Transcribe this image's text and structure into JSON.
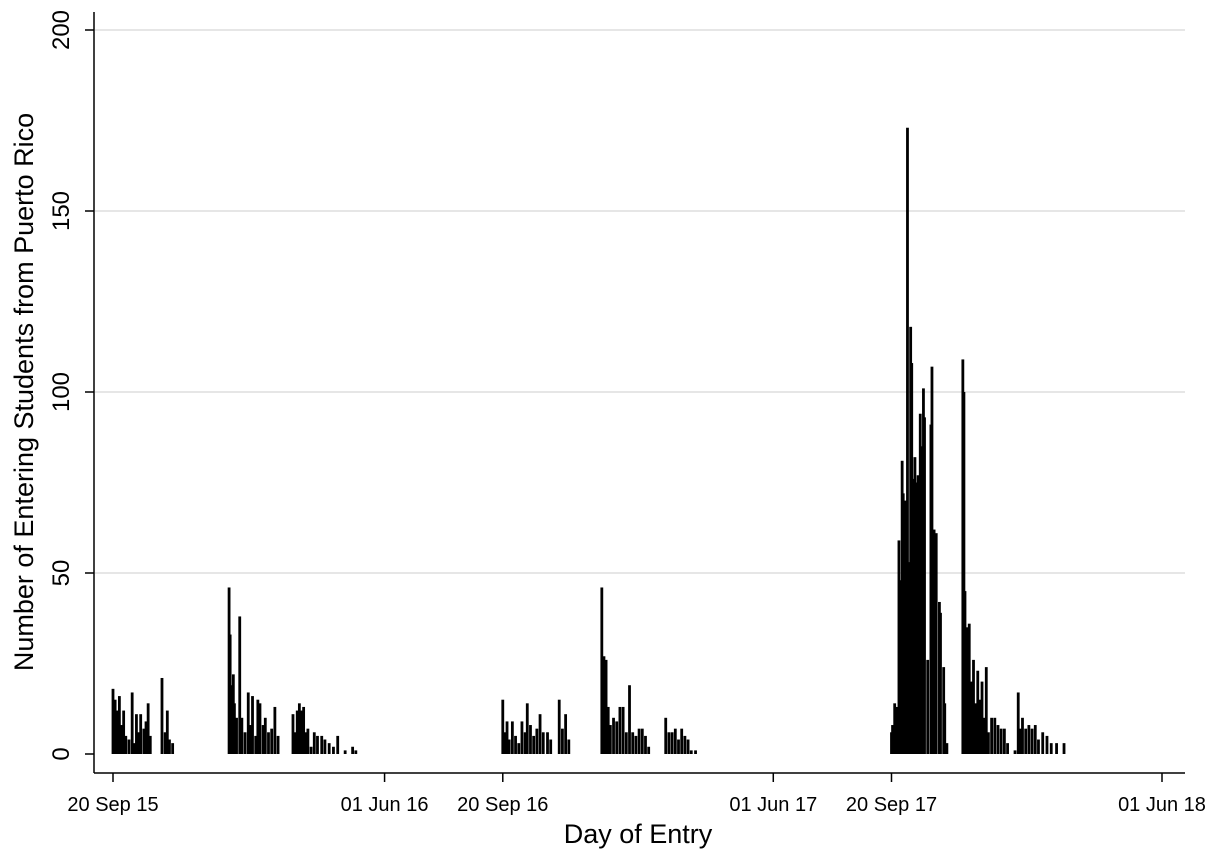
{
  "chart_data": {
    "type": "bar",
    "title": "",
    "xlabel": "Day of Entry",
    "ylabel": "Number of Entering Students from Puerto Rico",
    "ylim": [
      0,
      200
    ],
    "yticks": [
      0,
      50,
      100,
      150,
      200
    ],
    "xlim": [
      "2015-09-15",
      "2018-06-10"
    ],
    "xticks": [
      {
        "date": "2015-09-20",
        "label": "20 Sep 15"
      },
      {
        "date": "2016-06-01",
        "label": "01 Jun 16"
      },
      {
        "date": "2016-09-20",
        "label": "20 Sep 16"
      },
      {
        "date": "2017-06-01",
        "label": "01 Jun 17"
      },
      {
        "date": "2017-09-20",
        "label": "20 Sep 17"
      },
      {
        "date": "2018-06-01",
        "label": "01 Jun 18"
      }
    ],
    "grid": true,
    "bar_color": "#000000",
    "grid_color": "#e6e6e6",
    "points": [
      [
        "2015-09-20",
        18
      ],
      [
        "2015-09-22",
        15
      ],
      [
        "2015-09-24",
        12
      ],
      [
        "2015-09-26",
        16
      ],
      [
        "2015-09-28",
        8
      ],
      [
        "2015-09-30",
        12
      ],
      [
        "2015-10-02",
        5
      ],
      [
        "2015-10-05",
        4
      ],
      [
        "2015-10-08",
        17
      ],
      [
        "2015-10-10",
        3
      ],
      [
        "2015-10-12",
        11
      ],
      [
        "2015-10-14",
        6
      ],
      [
        "2015-10-16",
        11
      ],
      [
        "2015-10-19",
        7
      ],
      [
        "2015-10-21",
        9
      ],
      [
        "2015-10-23",
        14
      ],
      [
        "2015-10-25",
        5
      ],
      [
        "2015-11-05",
        21
      ],
      [
        "2015-11-08",
        6
      ],
      [
        "2015-11-10",
        12
      ],
      [
        "2015-11-12",
        4
      ],
      [
        "2015-11-15",
        3
      ],
      [
        "2016-01-07",
        46
      ],
      [
        "2016-01-08",
        33
      ],
      [
        "2016-01-09",
        19
      ],
      [
        "2016-01-11",
        22
      ],
      [
        "2016-01-12",
        14
      ],
      [
        "2016-01-14",
        10
      ],
      [
        "2016-01-17",
        38
      ],
      [
        "2016-01-19",
        10
      ],
      [
        "2016-01-22",
        6
      ],
      [
        "2016-01-25",
        17
      ],
      [
        "2016-01-27",
        8
      ],
      [
        "2016-01-29",
        16
      ],
      [
        "2016-02-01",
        5
      ],
      [
        "2016-02-03",
        15
      ],
      [
        "2016-02-05",
        14
      ],
      [
        "2016-02-08",
        8
      ],
      [
        "2016-02-10",
        10
      ],
      [
        "2016-02-13",
        6
      ],
      [
        "2016-02-16",
        7
      ],
      [
        "2016-02-19",
        13
      ],
      [
        "2016-02-22",
        5
      ],
      [
        "2016-03-07",
        11
      ],
      [
        "2016-03-09",
        6
      ],
      [
        "2016-03-11",
        12
      ],
      [
        "2016-03-13",
        14
      ],
      [
        "2016-03-15",
        12
      ],
      [
        "2016-03-17",
        13
      ],
      [
        "2016-03-19",
        6
      ],
      [
        "2016-03-21",
        7
      ],
      [
        "2016-03-24",
        2
      ],
      [
        "2016-03-27",
        6
      ],
      [
        "2016-03-30",
        5
      ],
      [
        "2016-04-03",
        5
      ],
      [
        "2016-04-06",
        4
      ],
      [
        "2016-04-10",
        3
      ],
      [
        "2016-04-14",
        2
      ],
      [
        "2016-04-18",
        5
      ],
      [
        "2016-04-25",
        1
      ],
      [
        "2016-05-02",
        2
      ],
      [
        "2016-05-05",
        1
      ],
      [
        "2016-09-20",
        15
      ],
      [
        "2016-09-22",
        6
      ],
      [
        "2016-09-24",
        9
      ],
      [
        "2016-09-26",
        4
      ],
      [
        "2016-09-29",
        9
      ],
      [
        "2016-10-02",
        5
      ],
      [
        "2016-10-05",
        3
      ],
      [
        "2016-10-08",
        9
      ],
      [
        "2016-10-11",
        6
      ],
      [
        "2016-10-13",
        14
      ],
      [
        "2016-10-16",
        8
      ],
      [
        "2016-10-19",
        5
      ],
      [
        "2016-10-22",
        7
      ],
      [
        "2016-10-25",
        11
      ],
      [
        "2016-10-28",
        6
      ],
      [
        "2016-11-01",
        6
      ],
      [
        "2016-11-04",
        4
      ],
      [
        "2016-11-12",
        15
      ],
      [
        "2016-11-15",
        7
      ],
      [
        "2016-11-18",
        11
      ],
      [
        "2016-11-21",
        4
      ],
      [
        "2016-12-22",
        46
      ],
      [
        "2016-12-24",
        27
      ],
      [
        "2016-12-26",
        26
      ],
      [
        "2016-12-28",
        13
      ],
      [
        "2016-12-30",
        8
      ],
      [
        "2017-01-02",
        10
      ],
      [
        "2017-01-05",
        9
      ],
      [
        "2017-01-08",
        13
      ],
      [
        "2017-01-11",
        13
      ],
      [
        "2017-01-14",
        6
      ],
      [
        "2017-01-17",
        19
      ],
      [
        "2017-01-20",
        6
      ],
      [
        "2017-01-23",
        5
      ],
      [
        "2017-01-26",
        7
      ],
      [
        "2017-01-29",
        7
      ],
      [
        "2017-02-01",
        5
      ],
      [
        "2017-02-04",
        2
      ],
      [
        "2017-02-20",
        10
      ],
      [
        "2017-02-23",
        6
      ],
      [
        "2017-02-26",
        6
      ],
      [
        "2017-03-01",
        7
      ],
      [
        "2017-03-04",
        4
      ],
      [
        "2017-03-07",
        7
      ],
      [
        "2017-03-10",
        5
      ],
      [
        "2017-03-13",
        4
      ],
      [
        "2017-03-16",
        1
      ],
      [
        "2017-03-20",
        1
      ],
      [
        "2017-09-20",
        6
      ],
      [
        "2017-09-21",
        8
      ],
      [
        "2017-09-23",
        14
      ],
      [
        "2017-09-25",
        13
      ],
      [
        "2017-09-27",
        59
      ],
      [
        "2017-09-28",
        48
      ],
      [
        "2017-09-30",
        81
      ],
      [
        "2017-10-01",
        72
      ],
      [
        "2017-10-03",
        70
      ],
      [
        "2017-10-05",
        173
      ],
      [
        "2017-10-06",
        53
      ],
      [
        "2017-10-08",
        118
      ],
      [
        "2017-10-09",
        108
      ],
      [
        "2017-10-11",
        76
      ],
      [
        "2017-10-12",
        82
      ],
      [
        "2017-10-14",
        75
      ],
      [
        "2017-10-15",
        77
      ],
      [
        "2017-10-17",
        94
      ],
      [
        "2017-10-18",
        85
      ],
      [
        "2017-10-20",
        101
      ],
      [
        "2017-10-21",
        93
      ],
      [
        "2017-10-24",
        26
      ],
      [
        "2017-10-27",
        91
      ],
      [
        "2017-10-28",
        107
      ],
      [
        "2017-10-30",
        62
      ],
      [
        "2017-11-01",
        61
      ],
      [
        "2017-11-04",
        42
      ],
      [
        "2017-11-05",
        39
      ],
      [
        "2017-11-08",
        24
      ],
      [
        "2017-11-09",
        14
      ],
      [
        "2017-11-11",
        3
      ],
      [
        "2017-11-26",
        109
      ],
      [
        "2017-11-27",
        100
      ],
      [
        "2017-11-28",
        45
      ],
      [
        "2017-11-30",
        35
      ],
      [
        "2017-12-02",
        36
      ],
      [
        "2017-12-04",
        20
      ],
      [
        "2017-12-06",
        26
      ],
      [
        "2017-12-08",
        14
      ],
      [
        "2017-12-10",
        23
      ],
      [
        "2017-12-12",
        15
      ],
      [
        "2017-12-14",
        20
      ],
      [
        "2017-12-16",
        10
      ],
      [
        "2017-12-18",
        24
      ],
      [
        "2017-12-20",
        6
      ],
      [
        "2017-12-23",
        10
      ],
      [
        "2017-12-26",
        10
      ],
      [
        "2017-12-29",
        8
      ],
      [
        "2018-01-01",
        7
      ],
      [
        "2018-01-04",
        7
      ],
      [
        "2018-01-07",
        3
      ],
      [
        "2018-01-14",
        1
      ],
      [
        "2018-01-17",
        17
      ],
      [
        "2018-01-19",
        7
      ],
      [
        "2018-01-21",
        10
      ],
      [
        "2018-01-24",
        7
      ],
      [
        "2018-01-27",
        8
      ],
      [
        "2018-01-30",
        7
      ],
      [
        "2018-02-02",
        8
      ],
      [
        "2018-02-05",
        4
      ],
      [
        "2018-02-09",
        6
      ],
      [
        "2018-02-13",
        5
      ],
      [
        "2018-02-17",
        3
      ],
      [
        "2018-02-22",
        3
      ],
      [
        "2018-03-01",
        3
      ]
    ]
  }
}
